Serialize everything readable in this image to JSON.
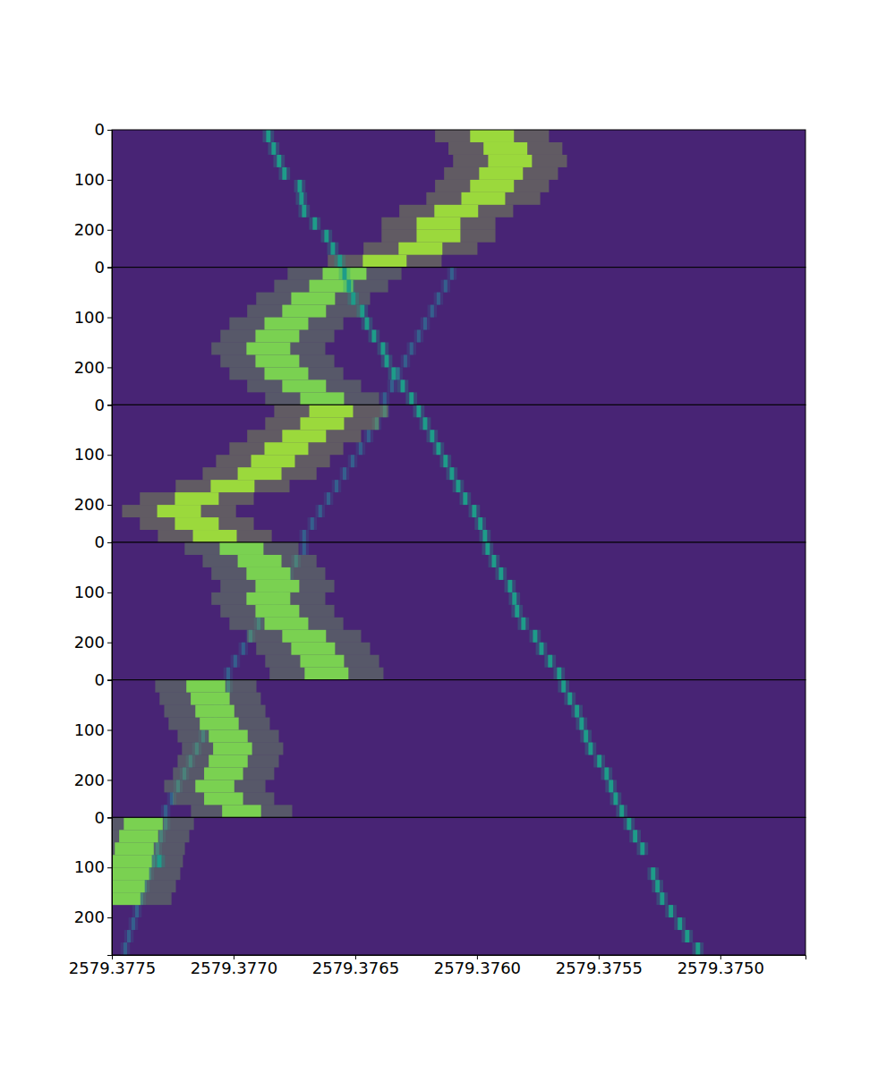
{
  "chart_data": {
    "type": "heatmap",
    "xlim": [
      2579.3775,
      2579.37465
    ],
    "xticks": [
      2579.3775,
      {
        "value": 2579.377,
        "label": "2579.3770"
      },
      2579.3765,
      {
        "value": 2579.376,
        "label": "2579.3760"
      },
      2579.3755,
      {
        "value": 2579.375,
        "label": "2579.3750"
      }
    ],
    "ylim": [
      0,
      275
    ],
    "yticks": [
      0,
      100,
      200
    ],
    "zlim": [
      0,
      1
    ],
    "background": 0.1,
    "row_height": 25,
    "panels": [
      {
        "tracks": [
          {
            "z": 0.85,
            "width": 0.00018,
            "y": [
              0,
              25,
              50,
              75,
              100,
              125,
              150,
              175,
              200,
              225,
              250
            ],
            "x": [
              2579.375938,
              2579.375883,
              2579.375864,
              2579.375901,
              2579.375938,
              2579.375974,
              2579.376085,
              2579.376158,
              2579.376158,
              2579.376232,
              2579.376379
            ]
          },
          {
            "z": 0.55,
            "width": 1.8e-05,
            "y": [
              0,
              25,
              50,
              75,
              100,
              125,
              150,
              175,
              200,
              225,
              250
            ],
            "x": [
              2579.376857,
              2579.376835,
              2579.376813,
              2579.376791,
              2579.376728,
              2579.376721,
              2579.37671,
              2579.376666,
              2579.376618,
              2579.376592,
              2579.376563
            ]
          }
        ]
      },
      {
        "tracks": [
          {
            "z": 0.3,
            "width": 1.5e-05,
            "y": [
              0,
              25,
              50,
              75,
              100,
              125,
              150,
              175,
              200,
              225,
              250
            ],
            "x": [
              2579.376103,
              2579.376129,
              2579.376158,
              2579.376184,
              2579.376213,
              2579.376239,
              2579.376269,
              2579.376294,
              2579.376324,
              2579.376349,
              2579.376379
            ]
          },
          {
            "z": 0.8,
            "width": 0.00018,
            "y": [
              0,
              25,
              50,
              75,
              100,
              125,
              150,
              175,
              200,
              225,
              250
            ],
            "x": [
              2579.376544,
              2579.376599,
              2579.376673,
              2579.37671,
              2579.376783,
              2579.37682,
              2579.376857,
              2579.37682,
              2579.376783,
              2579.37671,
              2579.376636
            ]
          },
          {
            "z": 0.55,
            "width": 1.8e-05,
            "y": [
              0,
              25,
              50,
              75,
              100,
              125,
              150,
              175,
              200,
              225,
              250
            ],
            "x": [
              2579.376544,
              2579.376526,
              2579.376508,
              2579.376471,
              2579.376452,
              2579.376423,
              2579.376386,
              2579.376371,
              2579.376342,
              2579.376305,
              2579.376269
            ]
          }
        ]
      },
      {
        "tracks": [
          {
            "z": 0.3,
            "width": 1.5e-05,
            "y": [
              0,
              25,
              50,
              75,
              100,
              125,
              150,
              175,
              200,
              225,
              250
            ],
            "x": [
              2579.376379,
              2579.376412,
              2579.376445,
              2579.376478,
              2579.376511,
              2579.376544,
              2579.376577,
              2579.37661,
              2579.376644,
              2579.376677,
              2579.37671
            ]
          },
          {
            "z": 0.85,
            "width": 0.00018,
            "y": [
              0,
              25,
              50,
              75,
              100,
              125,
              150,
              175,
              200,
              225,
              250
            ],
            "x": [
              2579.376599,
              2579.376636,
              2579.37671,
              2579.376783,
              2579.376838,
              2579.376893,
              2579.377004,
              2579.377151,
              2579.377224,
              2579.377151,
              2579.377077
            ]
          },
          {
            "z": 0.55,
            "width": 1.8e-05,
            "y": [
              0,
              25,
              50,
              75,
              100,
              125,
              150,
              175,
              200,
              225,
              250
            ],
            "x": [
              2579.376239,
              2579.376213,
              2579.376184,
              2579.376158,
              2579.376129,
              2579.376103,
              2579.376077,
              2579.376048,
              2579.376011,
              2579.375986,
              2579.375967
            ]
          }
        ]
      },
      {
        "tracks": [
          {
            "z": 0.3,
            "width": 1.5e-05,
            "y": [
              0,
              25,
              50,
              75,
              100,
              125,
              150,
              175,
              200,
              225,
              250
            ],
            "x": [
              2579.37671,
              2579.376743,
              2579.376772,
              2579.376805,
              2579.376835,
              2579.376868,
              2579.376897,
              2579.37693,
              2579.37696,
              2579.376993,
              2579.377022
            ]
          },
          {
            "z": 0.8,
            "width": 0.00018,
            "y": [
              0,
              25,
              50,
              75,
              100,
              125,
              150,
              175,
              200,
              225,
              250
            ],
            "x": [
              2579.376967,
              2579.376893,
              2579.376857,
              2579.37682,
              2579.376857,
              2579.37682,
              2579.376783,
              2579.37671,
              2579.376673,
              2579.376636,
              2579.376618
            ]
          },
          {
            "z": 0.55,
            "width": 1.8e-05,
            "y": [
              0,
              25,
              50,
              75,
              100,
              125,
              150,
              175,
              200,
              225,
              250
            ],
            "x": [
              2579.375956,
              2579.37593,
              2579.375901,
              2579.375864,
              2579.375846,
              2579.375835,
              2579.375809,
              2579.375761,
              2579.375735,
              2579.375699,
              2579.375662
            ]
          }
        ]
      },
      {
        "tracks": [
          {
            "z": 0.3,
            "width": 1.5e-05,
            "y": [
              0,
              25,
              50,
              75,
              100,
              125,
              150,
              175,
              200,
              225,
              250
            ],
            "x": [
              2579.377022,
              2579.377048,
              2579.377074,
              2579.377099,
              2579.377125,
              2579.377151,
              2579.377177,
              2579.377202,
              2579.377228,
              2579.377254,
              2579.377279
            ]
          },
          {
            "z": 0.8,
            "width": 0.00016,
            "y": [
              0,
              25,
              50,
              75,
              100,
              125,
              150,
              175,
              200,
              225,
              250
            ],
            "x": [
              2579.377114,
              2579.377096,
              2579.377077,
              2579.377059,
              2579.377022,
              2579.377004,
              2579.377022,
              2579.377041,
              2579.377077,
              2579.377041,
              2579.376967
            ]
          },
          {
            "z": 0.55,
            "width": 1.8e-05,
            "y": [
              0,
              25,
              50,
              75,
              100,
              125,
              150,
              175,
              200,
              225,
              250
            ],
            "x": [
              2579.375644,
              2579.375618,
              2579.375589,
              2579.37557,
              2579.375552,
              2579.375533,
              2579.375497,
              2579.375467,
              2579.375449,
              2579.37543,
              2579.375405
            ]
          }
        ]
      },
      {
        "tracks": [
          {
            "z": 0.3,
            "width": 1.5e-05,
            "y": [
              0,
              25,
              50,
              75,
              100,
              125,
              150,
              175,
              200,
              225,
              250
            ],
            "x": [
              2579.377279,
              2579.377298,
              2579.377313,
              2579.377331,
              2579.377346,
              2579.377364,
              2579.377379,
              2579.377397,
              2579.377412,
              2579.37743,
              2579.377445
            ]
          },
          {
            "z": 0.8,
            "width": 0.00016,
            "y": [
              0,
              25,
              50,
              75,
              100,
              125,
              150
            ],
            "x": [
              2579.377371,
              2579.37739,
              2579.377408,
              2579.377416,
              2579.377427,
              2579.377445,
              2579.377463
            ]
          },
          {
            "z": 0.55,
            "width": 1.8e-05,
            "y": [
              0,
              25,
              50,
              75,
              100,
              125,
              150,
              175,
              200,
              225,
              250
            ],
            "x": [
              2579.375375,
              2579.37535,
              2579.37532,
              2579.377305,
              2579.375276,
              2579.375258,
              2579.375239,
              2579.375203,
              2579.375166,
              2579.375136,
              2579.375092
            ]
          }
        ]
      }
    ]
  }
}
